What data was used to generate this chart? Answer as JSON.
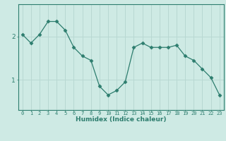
{
  "x": [
    0,
    1,
    2,
    3,
    4,
    5,
    6,
    7,
    8,
    9,
    10,
    11,
    12,
    13,
    14,
    15,
    16,
    17,
    18,
    19,
    20,
    21,
    22,
    23
  ],
  "y": [
    2.05,
    1.85,
    2.05,
    2.35,
    2.35,
    2.15,
    1.75,
    1.55,
    1.45,
    0.85,
    0.65,
    0.75,
    0.95,
    1.75,
    1.85,
    1.75,
    1.75,
    1.75,
    1.8,
    1.55,
    1.45,
    1.25,
    1.05,
    0.65
  ],
  "line_color": "#2d7d6e",
  "marker": "D",
  "marker_size": 2.5,
  "bg_color": "#ceeae4",
  "grid_color": "#b8d8d2",
  "axis_color": "#2d7d6e",
  "tick_color": "#2d7d6e",
  "xlabel": "Humidex (Indice chaleur)",
  "yticks": [
    1,
    2
  ],
  "xlim": [
    -0.5,
    23.5
  ],
  "ylim": [
    0.3,
    2.75
  ],
  "font_color": "#2d7d6e",
  "xlabel_fontsize": 6.5,
  "xtick_fontsize": 5.0,
  "ytick_fontsize": 6.5
}
